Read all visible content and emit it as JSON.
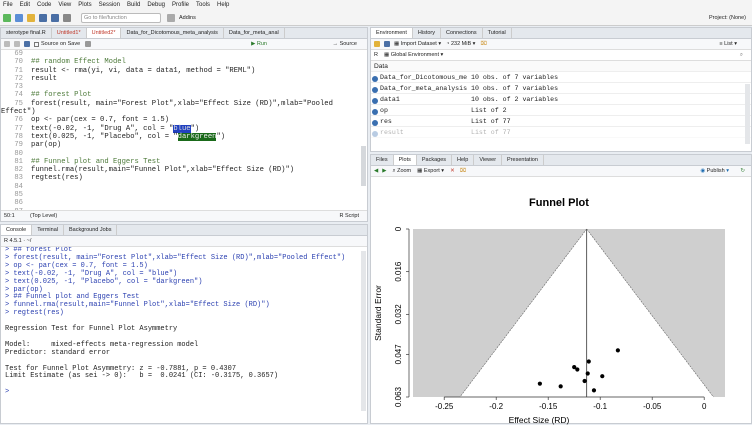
{
  "menu": [
    "File",
    "Edit",
    "Code",
    "View",
    "Plots",
    "Session",
    "Build",
    "Debug",
    "Profile",
    "Tools",
    "Help"
  ],
  "toolbar": {
    "goto_placeholder": "Go to file/function",
    "addins": "Addins",
    "project": "Project: (None)"
  },
  "editor": {
    "tabs": [
      {
        "label": "sterotype final.R",
        "mod": false
      },
      {
        "label": "Untitled1*",
        "mod": true
      },
      {
        "label": "Untitled2*",
        "mod": true
      },
      {
        "label": "Data_for_Dicotomous_meta_analysis",
        "mod": false
      },
      {
        "label": "Data_for_meta_anal",
        "mod": false
      }
    ],
    "source_on_save": "Source on Save",
    "run": "Run",
    "source": "Source",
    "lines": [
      {
        "n": "69",
        "t": ""
      },
      {
        "n": "70",
        "t": "## random Effect Model",
        "cls": "cmt"
      },
      {
        "n": "71",
        "t": "result <- rma(yi, vi, data = data1, method = \"REML\")"
      },
      {
        "n": "72",
        "t": "result"
      },
      {
        "n": "73",
        "t": ""
      },
      {
        "n": "74",
        "t": "## forest Plot",
        "cls": "cmt"
      },
      {
        "n": "75",
        "t": "forest(result, main=\"Forest Plot\",xlab=\"Effect Size (RD)\",mlab=\"Pooled Effect\")"
      },
      {
        "n": "76",
        "t": "op <- par(cex = 0.7, font = 1.5)"
      },
      {
        "n": "77",
        "pre": "text(-0.02, -1, \"Drug A\", col = \"",
        "hl": "blue",
        "post": "\")",
        "hlc": "hl-blue"
      },
      {
        "n": "78",
        "pre": "text(0.025, -1, \"Placebo\", col = \"",
        "hl": "darkgreen",
        "post": "\")",
        "hlc": "hl-dg"
      },
      {
        "n": "79",
        "t": "par(op)"
      },
      {
        "n": "80",
        "t": ""
      },
      {
        "n": "81",
        "t": "## Funnel plot and Eggers Test",
        "cls": "cmt"
      },
      {
        "n": "82",
        "t": "funnel.rma(result,main=\"Funnel Plot\",xlab=\"Effect Size (RD)\")"
      },
      {
        "n": "83",
        "t": "regtest(res)"
      },
      {
        "n": "84",
        "t": ""
      },
      {
        "n": "85",
        "t": ""
      },
      {
        "n": "86",
        "t": ""
      },
      {
        "n": "87",
        "t": ""
      }
    ],
    "status_pos": "50:1",
    "status_level": "(Top Level)",
    "status_type": "R Script"
  },
  "console": {
    "tabs": [
      "Console",
      "Terminal",
      "Background Jobs"
    ],
    "version": "R 4.5.1 · ~/",
    "lines": [
      {
        "t": "> ## forest Plot",
        "c": "cin"
      },
      {
        "t": "> forest(result, main=\"Forest Plot\",xlab=\"Effect Size (RD)\",mlab=\"Pooled Effect\")",
        "c": "cin"
      },
      {
        "t": "> op <- par(cex = 0.7, font = 1.5)",
        "c": "cin"
      },
      {
        "t": "> text(-0.02, -1, \"Drug A\", col = \"blue\")",
        "c": "cin"
      },
      {
        "t": "> text(0.025, -1, \"Placebo\", col = \"darkgreen\")",
        "c": "cin"
      },
      {
        "t": "> par(op)",
        "c": "cin"
      },
      {
        "t": "> ## Funnel plot and Eggers Test",
        "c": "cin"
      },
      {
        "t": "> funnel.rma(result,main=\"Funnel Plot\",xlab=\"Effect Size (RD)\")",
        "c": "cin"
      },
      {
        "t": "> regtest(res)",
        "c": "cin"
      },
      {
        "t": "",
        "c": ""
      },
      {
        "t": "Regression Test for Funnel Plot Asymmetry",
        "c": ""
      },
      {
        "t": "",
        "c": ""
      },
      {
        "t": "Model:     mixed-effects meta-regression model",
        "c": ""
      },
      {
        "t": "Predictor: standard error",
        "c": ""
      },
      {
        "t": "",
        "c": ""
      },
      {
        "t": "Test for Funnel Plot Asymmetry: z = -0.7881, p = 0.4307",
        "c": ""
      },
      {
        "t": "Limit Estimate (as sei -> 0):   b =  0.0241 (CI: -0.3175, 0.3657)",
        "c": ""
      },
      {
        "t": "",
        "c": ""
      },
      {
        "t": ">",
        "c": "cin"
      }
    ]
  },
  "environment": {
    "tabs": [
      "Environment",
      "History",
      "Connections",
      "Tutorial"
    ],
    "import": "Import Dataset",
    "memory": "232 MiB",
    "list": "List",
    "lang": "R",
    "scope": "Global Environment",
    "section": "Data",
    "rows": [
      {
        "name": "Data_for_Dicotomous_me",
        "val": "10 obs. of 7 variables"
      },
      {
        "name": "Data_for_meta_analysis",
        "val": "10 obs. of 7 variables"
      },
      {
        "name": "data1",
        "val": "10 obs. of 2 variables"
      },
      {
        "name": "op",
        "val": "List of  2"
      },
      {
        "name": "res",
        "val": "List of  77"
      },
      {
        "name": "result",
        "val": "List of  77"
      }
    ]
  },
  "files": {
    "tabs": [
      "Files",
      "Plots",
      "Packages",
      "Help",
      "Viewer",
      "Presentation"
    ],
    "zoom": "Zoom",
    "export": "Export",
    "publish": "Publish"
  },
  "chart_data": {
    "type": "scatter",
    "title": "Funnel Plot",
    "xlabel": "Effect Size (RD)",
    "ylabel": "Standard Error",
    "xlim": [
      -0.28,
      0.02
    ],
    "ylim": [
      0,
      0.063
    ],
    "x_ticks": [
      -0.25,
      -0.2,
      -0.15,
      -0.1,
      -0.05,
      0
    ],
    "x_tick_labels": [
      "-0.25",
      "-0.2",
      "-0.15",
      "-0.1",
      "-0.05",
      "0"
    ],
    "y_ticks": [
      0,
      0.016,
      0.032,
      0.047,
      0.063
    ],
    "y_tick_labels": [
      "0",
      "0.016",
      "0.032",
      "0.047",
      "0.063"
    ],
    "funnel_center": -0.113,
    "points": [
      {
        "x": -0.083,
        "y": 0.0455
      },
      {
        "x": -0.111,
        "y": 0.0497
      },
      {
        "x": -0.122,
        "y": 0.0527
      },
      {
        "x": -0.125,
        "y": 0.0518
      },
      {
        "x": -0.112,
        "y": 0.0542
      },
      {
        "x": -0.098,
        "y": 0.0552
      },
      {
        "x": -0.115,
        "y": 0.057
      },
      {
        "x": -0.138,
        "y": 0.059
      },
      {
        "x": -0.158,
        "y": 0.058
      },
      {
        "x": -0.106,
        "y": 0.0605
      }
    ]
  }
}
